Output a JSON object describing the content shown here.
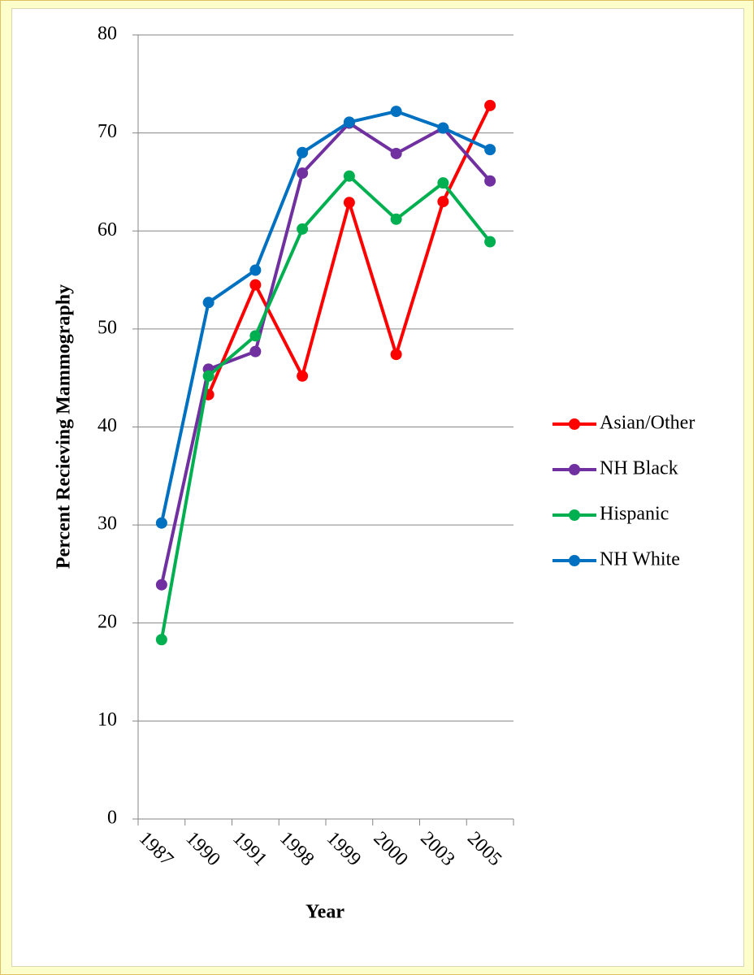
{
  "chart_data": {
    "type": "line",
    "ylabel": "Percent Recieving Mammography",
    "xlabel": "Year",
    "categories": [
      "1987",
      "1990",
      "1991",
      "1998",
      "1999",
      "2000",
      "2003",
      "2005"
    ],
    "series": [
      {
        "name": "Asian/Other",
        "color": "#ff0000",
        "values": [
          null,
          43.3,
          54.5,
          45.2,
          62.9,
          47.4,
          63.0,
          72.8
        ]
      },
      {
        "name": "NH Black",
        "color": "#7030a0",
        "values": [
          23.9,
          45.9,
          47.7,
          65.9,
          71.0,
          67.9,
          70.5,
          65.1
        ]
      },
      {
        "name": "Hispanic",
        "color": "#00b050",
        "values": [
          18.3,
          45.2,
          49.3,
          60.2,
          65.6,
          61.2,
          64.9,
          58.9
        ]
      },
      {
        "name": "NH White",
        "color": "#0070c0",
        "values": [
          30.2,
          52.7,
          56.0,
          68.0,
          71.1,
          72.2,
          70.5,
          68.3
        ]
      }
    ],
    "ylim": [
      0,
      80
    ],
    "yticks": [
      0,
      10,
      20,
      30,
      40,
      50,
      60,
      70,
      80
    ],
    "grid": true,
    "legend": "right"
  }
}
